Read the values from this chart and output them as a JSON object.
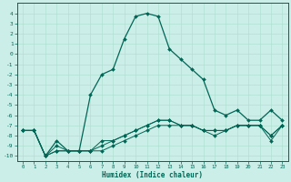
{
  "xlabel": "Humidex (Indice chaleur)",
  "bg_color": "#cceee8",
  "grid_color": "#aaddcc",
  "line_color": "#006655",
  "xlim": [
    -0.5,
    23.5
  ],
  "ylim": [
    -10.5,
    5.0
  ],
  "xticks": [
    0,
    1,
    2,
    3,
    4,
    5,
    6,
    7,
    8,
    9,
    10,
    11,
    12,
    13,
    14,
    15,
    16,
    17,
    18,
    19,
    20,
    21,
    22,
    23
  ],
  "yticks": [
    4,
    3,
    2,
    1,
    0,
    -1,
    -2,
    -3,
    -4,
    -5,
    -6,
    -7,
    -8,
    -9,
    -10
  ],
  "line_big_x": [
    0,
    1,
    2,
    3,
    4,
    5,
    6,
    7,
    8,
    9,
    10,
    11,
    12,
    13,
    14,
    15,
    16,
    17,
    18,
    19,
    20,
    21,
    22,
    23
  ],
  "line_big_y": [
    -7.5,
    -7.5,
    -10.0,
    -8.5,
    -9.5,
    -9.5,
    -4.0,
    -2.0,
    -1.5,
    1.5,
    3.7,
    4.0,
    3.7,
    0.5,
    -0.5,
    -1.5,
    -2.5,
    -5.5,
    -6.0,
    -5.5,
    -6.5,
    -6.5,
    -5.5,
    -6.5
  ],
  "line_flat1_x": [
    0,
    1,
    2,
    3,
    4,
    5,
    6,
    7,
    8,
    9,
    10,
    11,
    12,
    13,
    14,
    15,
    16,
    17,
    18,
    19,
    20,
    21,
    22,
    23
  ],
  "line_flat1_y": [
    -7.5,
    -7.5,
    -10.0,
    -9.0,
    -9.5,
    -9.5,
    -9.5,
    -9.0,
    -8.5,
    -8.0,
    -7.5,
    -7.0,
    -6.5,
    -6.5,
    -7.0,
    -7.0,
    -7.5,
    -7.5,
    -7.5,
    -7.0,
    -7.0,
    -7.0,
    -8.0,
    -7.0
  ],
  "line_flat2_x": [
    0,
    1,
    2,
    3,
    4,
    5,
    6,
    7,
    8,
    9,
    10,
    11,
    12,
    13,
    14,
    15,
    16,
    17,
    18,
    19,
    20,
    21,
    22,
    23
  ],
  "line_flat2_y": [
    -7.5,
    -7.5,
    -10.0,
    -9.5,
    -9.5,
    -9.5,
    -9.5,
    -8.5,
    -8.5,
    -8.0,
    -7.5,
    -7.0,
    -6.5,
    -6.5,
    -7.0,
    -7.0,
    -7.5,
    -8.0,
    -7.5,
    -7.0,
    -7.0,
    -7.0,
    -8.0,
    -7.0
  ],
  "line_flat3_x": [
    0,
    1,
    2,
    3,
    4,
    5,
    6,
    7,
    8,
    9,
    10,
    11,
    12,
    13,
    14,
    15,
    16,
    17,
    18,
    19,
    20,
    21,
    22,
    23
  ],
  "line_flat3_y": [
    -7.5,
    -7.5,
    -10.0,
    -9.5,
    -9.5,
    -9.5,
    -9.5,
    -9.5,
    -9.0,
    -8.5,
    -8.0,
    -7.5,
    -7.0,
    -7.0,
    -7.0,
    -7.0,
    -7.5,
    -7.5,
    -7.5,
    -7.0,
    -7.0,
    -7.0,
    -8.5,
    -7.0
  ]
}
